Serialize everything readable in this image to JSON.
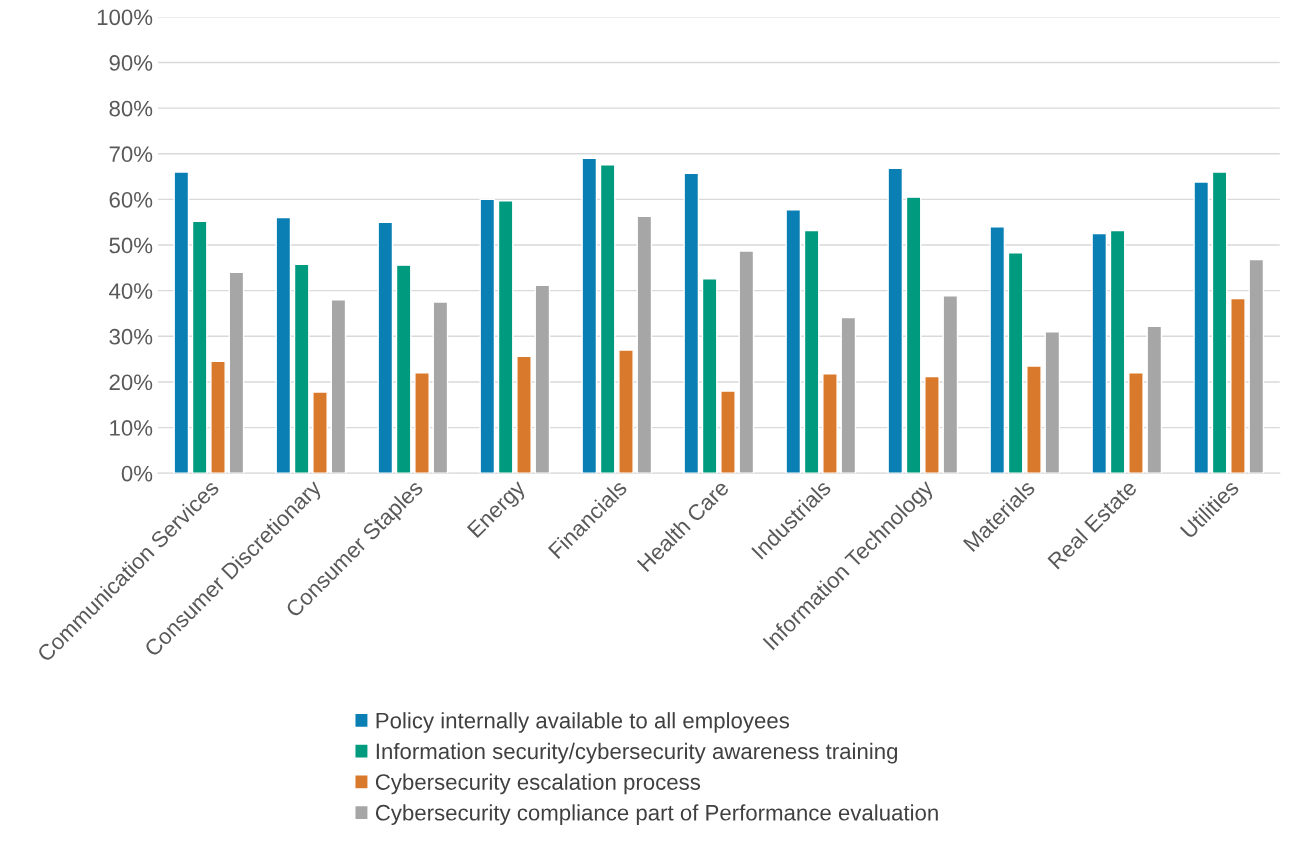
{
  "chart_data": {
    "type": "bar",
    "categories": [
      "Communication Services",
      "Consumer Discretionary",
      "Consumer Staples",
      "Energy",
      "Financials",
      "Health Care",
      "Industrials",
      "Information Technology",
      "Materials",
      "Real Estate",
      "Utilities"
    ],
    "series": [
      {
        "name": "Policy internally available to all employees",
        "color": "#0a7fb4",
        "values": [
          66,
          56,
          55,
          60,
          69,
          65.7,
          57.7,
          66.8,
          54,
          52.5,
          63.8
        ]
      },
      {
        "name": "Information security/cybersecurity awareness training",
        "color": "#009a7f",
        "values": [
          55.2,
          45.8,
          45.6,
          59.7,
          67.6,
          42.6,
          53.2,
          60.5,
          48.3,
          53.2,
          66
        ]
      },
      {
        "name": "Cybersecurity escalation process",
        "color": "#d9792b",
        "values": [
          24.5,
          17.8,
          22,
          25.6,
          27,
          18,
          21.8,
          21.2,
          23.5,
          22,
          38.3
        ]
      },
      {
        "name": "Cybersecurity compliance part of Performance evaluation",
        "color": "#a6a6a6",
        "values": [
          44,
          38,
          37.5,
          41.2,
          56.3,
          48.7,
          34.1,
          38.9,
          31,
          32.2,
          46.8
        ]
      }
    ],
    "ylim": [
      0,
      100
    ],
    "yticks": [
      {
        "value": 0,
        "label": "0%"
      },
      {
        "value": 10,
        "label": "10%"
      },
      {
        "value": 20,
        "label": "20%"
      },
      {
        "value": 30,
        "label": "30%"
      },
      {
        "value": 40,
        "label": "40%"
      },
      {
        "value": 50,
        "label": "50%"
      },
      {
        "value": 60,
        "label": "60%"
      },
      {
        "value": 70,
        "label": "70%"
      },
      {
        "value": 80,
        "label": "80%"
      },
      {
        "value": 90,
        "label": "90%"
      },
      {
        "value": 100,
        "label": "100%"
      }
    ],
    "grid": "y",
    "legend": "bottom"
  }
}
